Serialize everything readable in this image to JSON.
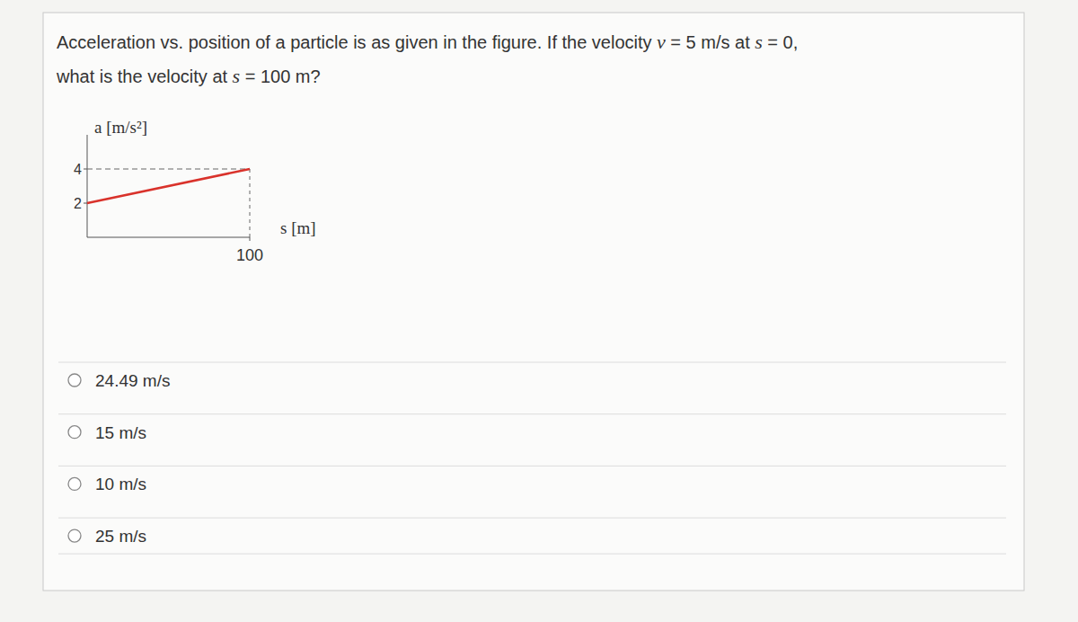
{
  "question": {
    "lines": [
      "Acceleration vs. position of a particle is as given in the figure. If the velocity v = 5 m/s at s = 0,",
      "what is the velocity at s = 100 m?"
    ]
  },
  "chart_data": {
    "type": "line",
    "ylabel": "a [m/s²]",
    "xlabel": "s [m]",
    "series": [
      {
        "name": "a",
        "color": "#d9322b",
        "x": [
          0,
          100
        ],
        "values": [
          2,
          4
        ]
      }
    ],
    "xlim": [
      0,
      100
    ],
    "ylim": [
      0,
      6
    ],
    "xticks": [
      100
    ],
    "yticks": [
      2,
      4
    ],
    "grid": false
  },
  "options": [
    "24.49 m/s",
    "15 m/s",
    "10 m/s",
    "25 m/s"
  ]
}
